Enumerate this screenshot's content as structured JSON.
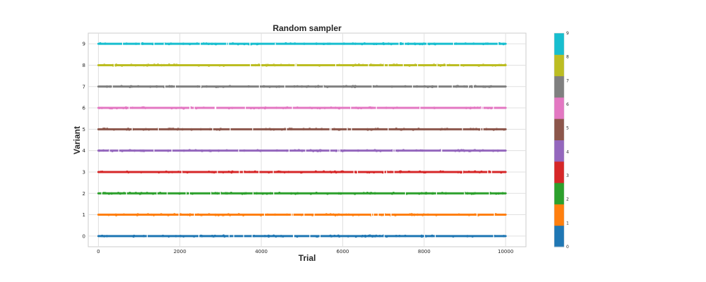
{
  "chart_data": {
    "type": "scatter",
    "title": "Random sampler",
    "xlabel": "Trial",
    "ylabel": "Variant",
    "xlim": [
      -250,
      10500
    ],
    "ylim": [
      -0.5,
      9.5
    ],
    "x_ticks": [
      0,
      2000,
      4000,
      6000,
      8000,
      10000
    ],
    "y_ticks": [
      0,
      1,
      2,
      3,
      4,
      5,
      6,
      7,
      8,
      9
    ],
    "grid": true,
    "trials": 10000,
    "series": [
      {
        "variant": 0,
        "color": "#1f77b4",
        "x_range": [
          0,
          10000
        ]
      },
      {
        "variant": 1,
        "color": "#ff7f0e",
        "x_range": [
          0,
          10000
        ]
      },
      {
        "variant": 2,
        "color": "#2ca02c",
        "x_range": [
          0,
          10000
        ]
      },
      {
        "variant": 3,
        "color": "#d62728",
        "x_range": [
          0,
          10000
        ]
      },
      {
        "variant": 4,
        "color": "#9467bd",
        "x_range": [
          0,
          10000
        ]
      },
      {
        "variant": 5,
        "color": "#8c564b",
        "x_range": [
          0,
          10000
        ]
      },
      {
        "variant": 6,
        "color": "#e377c2",
        "x_range": [
          0,
          10000
        ]
      },
      {
        "variant": 7,
        "color": "#7f7f7f",
        "x_range": [
          0,
          10000
        ]
      },
      {
        "variant": 8,
        "color": "#bcbd22",
        "x_range": [
          0,
          10000
        ]
      },
      {
        "variant": 9,
        "color": "#17becf",
        "x_range": [
          0,
          10000
        ]
      }
    ],
    "colorbar": {
      "ticks": [
        0,
        1,
        2,
        3,
        4,
        5,
        6,
        7,
        8,
        9
      ],
      "colors": [
        "#1f77b4",
        "#ff7f0e",
        "#2ca02c",
        "#d62728",
        "#9467bd",
        "#8c564b",
        "#e377c2",
        "#7f7f7f",
        "#bcbd22",
        "#17becf"
      ]
    }
  }
}
